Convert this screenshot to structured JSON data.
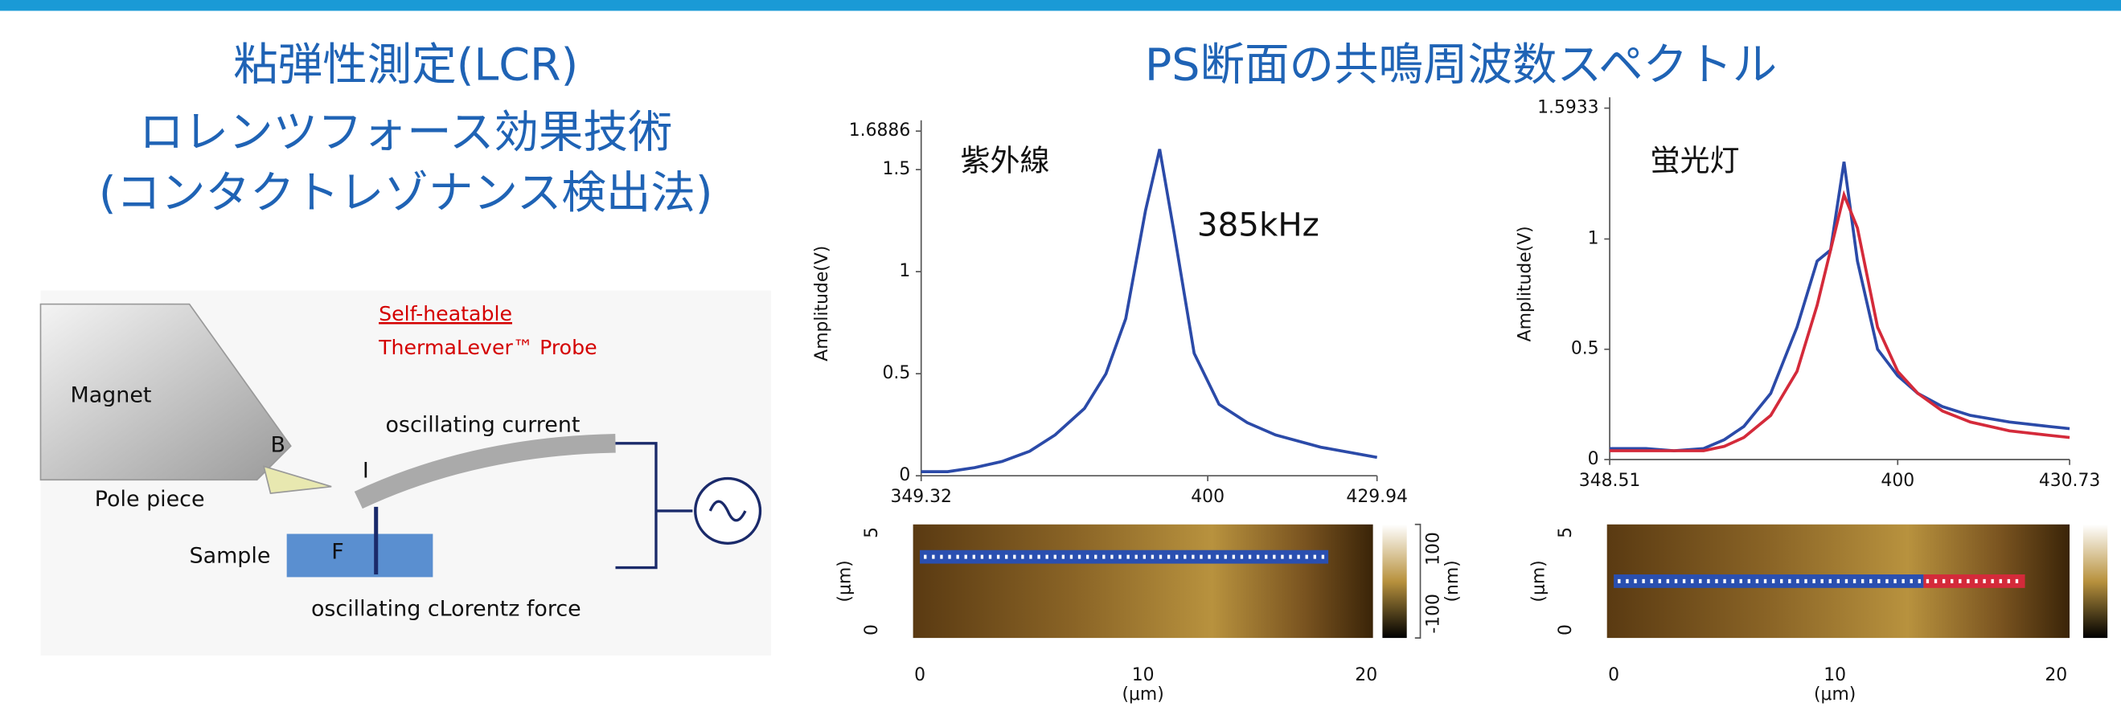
{
  "slide": {
    "left_title": [
      "粘弾性測定(LCR)",
      "ロレンツフォース効果技術",
      "(コンタクトレゾナンス検出法)"
    ],
    "right_title": "PS断面の共鳴周波数スペクトル"
  },
  "diagram": {
    "magnet": "Magnet",
    "b": "B",
    "i": "I",
    "pole_piece": "Pole piece",
    "sample": "Sample",
    "f": "F",
    "probe_line1": "Self-heatable",
    "probe_line2": "ThermaLever™ Probe",
    "current": "oscillating current",
    "force": "oscillating cLorentz force"
  },
  "chart_data": [
    {
      "type": "line",
      "ylabel": "Amplitude(V)",
      "annotations": [
        "紫外線",
        "385kHz"
      ],
      "x": [
        349.32,
        354,
        358.8,
        363.6,
        368.5,
        373,
        378.2,
        382,
        385.5,
        389,
        391.5,
        394,
        397.6,
        402,
        407,
        412,
        420,
        429.94
      ],
      "series": [
        {
          "color": "#2b4aa8",
          "values": [
            0.02,
            0.02,
            0.04,
            0.07,
            0.12,
            0.2,
            0.33,
            0.5,
            0.77,
            1.3,
            1.6,
            1.2,
            0.6,
            0.35,
            0.26,
            0.2,
            0.14,
            0.09
          ]
        }
      ],
      "xlim": [
        349.32,
        429.94
      ],
      "xticks": [
        349.32,
        400,
        429.94
      ],
      "ylim": [
        0,
        1.6886
      ],
      "yticks": [
        0,
        0.5,
        1,
        1.5,
        1.6886
      ]
    },
    {
      "type": "line",
      "ylabel": "Amplitude(V)",
      "annotations": [
        "蛍光灯"
      ],
      "x": [
        348.51,
        355,
        360,
        365.3,
        369,
        372.5,
        377.3,
        382,
        385.6,
        388,
        390.4,
        392.8,
        396.4,
        400,
        403.6,
        408,
        413,
        420,
        427,
        430.73
      ],
      "series": [
        {
          "color": "#2b4aa8",
          "values": [
            0.05,
            0.05,
            0.04,
            0.05,
            0.09,
            0.15,
            0.3,
            0.6,
            0.9,
            0.95,
            1.35,
            0.9,
            0.5,
            0.38,
            0.3,
            0.24,
            0.2,
            0.17,
            0.15,
            0.14
          ]
        },
        {
          "color": "#d42a3a",
          "values": [
            0.04,
            0.04,
            0.04,
            0.04,
            0.06,
            0.1,
            0.2,
            0.4,
            0.7,
            0.95,
            1.2,
            1.05,
            0.6,
            0.4,
            0.3,
            0.22,
            0.17,
            0.13,
            0.11,
            0.1
          ]
        }
      ],
      "xlim": [
        348.51,
        430.73
      ],
      "xticks": [
        348.51,
        400,
        430.73
      ],
      "ylim": [
        0,
        1.5933
      ],
      "yticks": [
        0,
        0.5,
        1,
        1.5933
      ]
    }
  ],
  "maps": [
    {
      "xticks": [
        0,
        10,
        20
      ],
      "yticks": [
        0,
        5
      ],
      "xunit": "(μm)",
      "yunit": "(μm)",
      "colorbar_ticks": [
        100,
        -100
      ],
      "colorbar_unit": "(nm)"
    },
    {
      "xticks": [
        0,
        10,
        20
      ],
      "yticks": [
        0,
        5
      ],
      "xunit": "(μm)",
      "yunit": "(μm)"
    }
  ]
}
